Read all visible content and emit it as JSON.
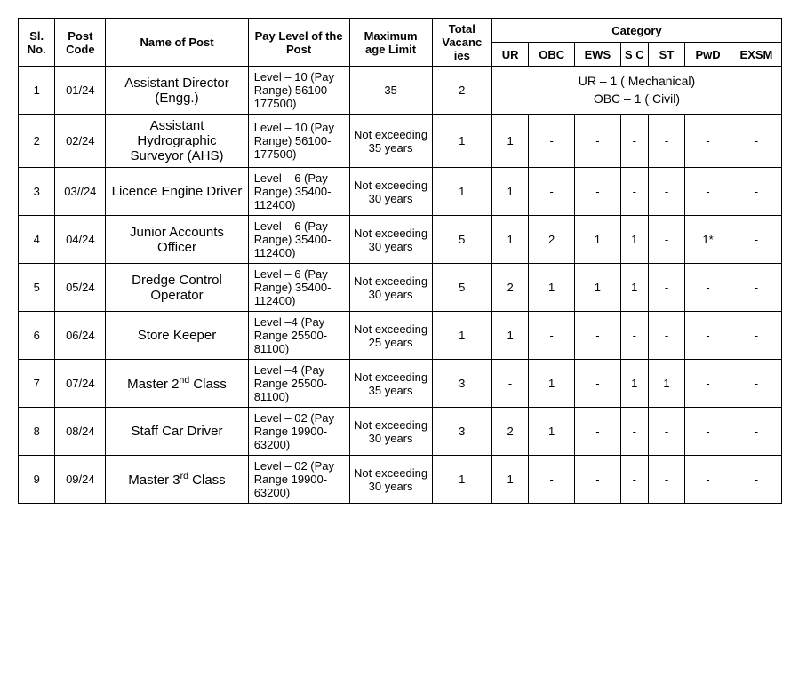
{
  "header": {
    "sl_no": "Sl. No.",
    "post_code": "Post Code",
    "name_of_post": "Name of Post",
    "pay_level": "Pay Level of the Post",
    "max_age": "Maximum age Limit",
    "total_vac": "Total Vacanc ies",
    "category": "Category",
    "ur": "UR",
    "obc": "OBC",
    "ews": "EWS",
    "sc": "S C",
    "st": "ST",
    "pwd": "PwD",
    "exsm": "EXSM"
  },
  "col_widths": {
    "sl": 40,
    "code": 55,
    "name": 155,
    "pay": 110,
    "age": 90,
    "vac": 65,
    "ur": 40,
    "obc": 50,
    "ews": 50,
    "sc": 30,
    "st": 40,
    "pwd": 50,
    "exsm": 55
  },
  "rows": [
    {
      "sl": "1",
      "code": "01/24",
      "name": "Assistant Director (Engg.)",
      "pay": "Level – 10  (Pay  Range) 56100-177500)",
      "age": "35",
      "vac": "2",
      "category_merged": true,
      "cat_line1": "UR – 1 ( Mechanical)",
      "cat_line2": "OBC – 1 ( Civil)"
    },
    {
      "sl": "2",
      "code": "02/24",
      "name": "Assistant Hydrographic Surveyor (AHS)",
      "pay": "Level – 10  (Pay  Range) 56100-177500)",
      "age": "Not exceeding 35 years",
      "vac": "1",
      "ur": "1",
      "obc": "-",
      "ews": "-",
      "sc": "-",
      "st": "-",
      "pwd": "-",
      "exsm": "-"
    },
    {
      "sl": "3",
      "code": "03//24",
      "name": "Licence Engine Driver",
      "pay": "Level – 6 (Pay  Range) 35400-112400)",
      "age": "Not exceeding 30 years",
      "vac": "1",
      "ur": "1",
      "obc": "-",
      "ews": "-",
      "sc": "-",
      "st": "-",
      "pwd": "-",
      "exsm": "-"
    },
    {
      "sl": "4",
      "code": "04/24",
      "name": "Junior Accounts Officer",
      "pay": "Level – 6 (Pay  Range) 35400-112400)",
      "age": "Not exceeding 30 years",
      "vac": "5",
      "ur": "1",
      "obc": "2",
      "ews": "1",
      "sc": "1",
      "st": "-",
      "pwd": "1*",
      "exsm": "-"
    },
    {
      "sl": "5",
      "code": "05/24",
      "name": "Dredge Control Operator",
      "pay": "Level – 6 (Pay  Range) 35400-112400)",
      "age": "Not exceeding 30 years",
      "vac": "5",
      "ur": "2",
      "obc": "1",
      "ews": "1",
      "sc": "1",
      "st": "-",
      "pwd": "-",
      "exsm": "-"
    },
    {
      "sl": "6",
      "code": "06/24",
      "name": "Store Keeper",
      "pay": "Level –4 (Pay   Range 25500-81100)",
      "age": "Not exceeding 25 years",
      "vac": "1",
      "ur": "1",
      "obc": "-",
      "ews": "-",
      "sc": "-",
      "st": "-",
      "pwd": "-",
      "exsm": "-"
    },
    {
      "sl": "7",
      "code": "07/24",
      "name_html": "Master  2<sup>nd</sup> Class",
      "pay": "Level –4 (Pay   Range 25500-81100)",
      "age": "Not exceeding 35 years",
      "vac": "3",
      "ur": "-",
      "obc": "1",
      "ews": "-",
      "sc": "1",
      "st": "1",
      "pwd": "-",
      "exsm": "-"
    },
    {
      "sl": "8",
      "code": "08/24",
      "name": "Staff  Car Driver",
      "pay": "Level – 02  (Pay  Range 19900-63200)",
      "age": "Not exceeding 30 years",
      "vac": "3",
      "ur": "2",
      "obc": "1",
      "ews": "-",
      "sc": "-",
      "st": "-",
      "pwd": "-",
      "exsm": "-"
    },
    {
      "sl": "9",
      "code": "09/24",
      "name_html": "Master 3<sup>rd</sup> Class",
      "pay": "Level – 02  (Pay  Range 19900-63200)",
      "age": "Not exceeding 30 years",
      "vac": "1",
      "ur": "1",
      "obc": "-",
      "ews": "-",
      "sc": "-",
      "st": "-",
      "pwd": "-",
      "exsm": "-"
    }
  ]
}
